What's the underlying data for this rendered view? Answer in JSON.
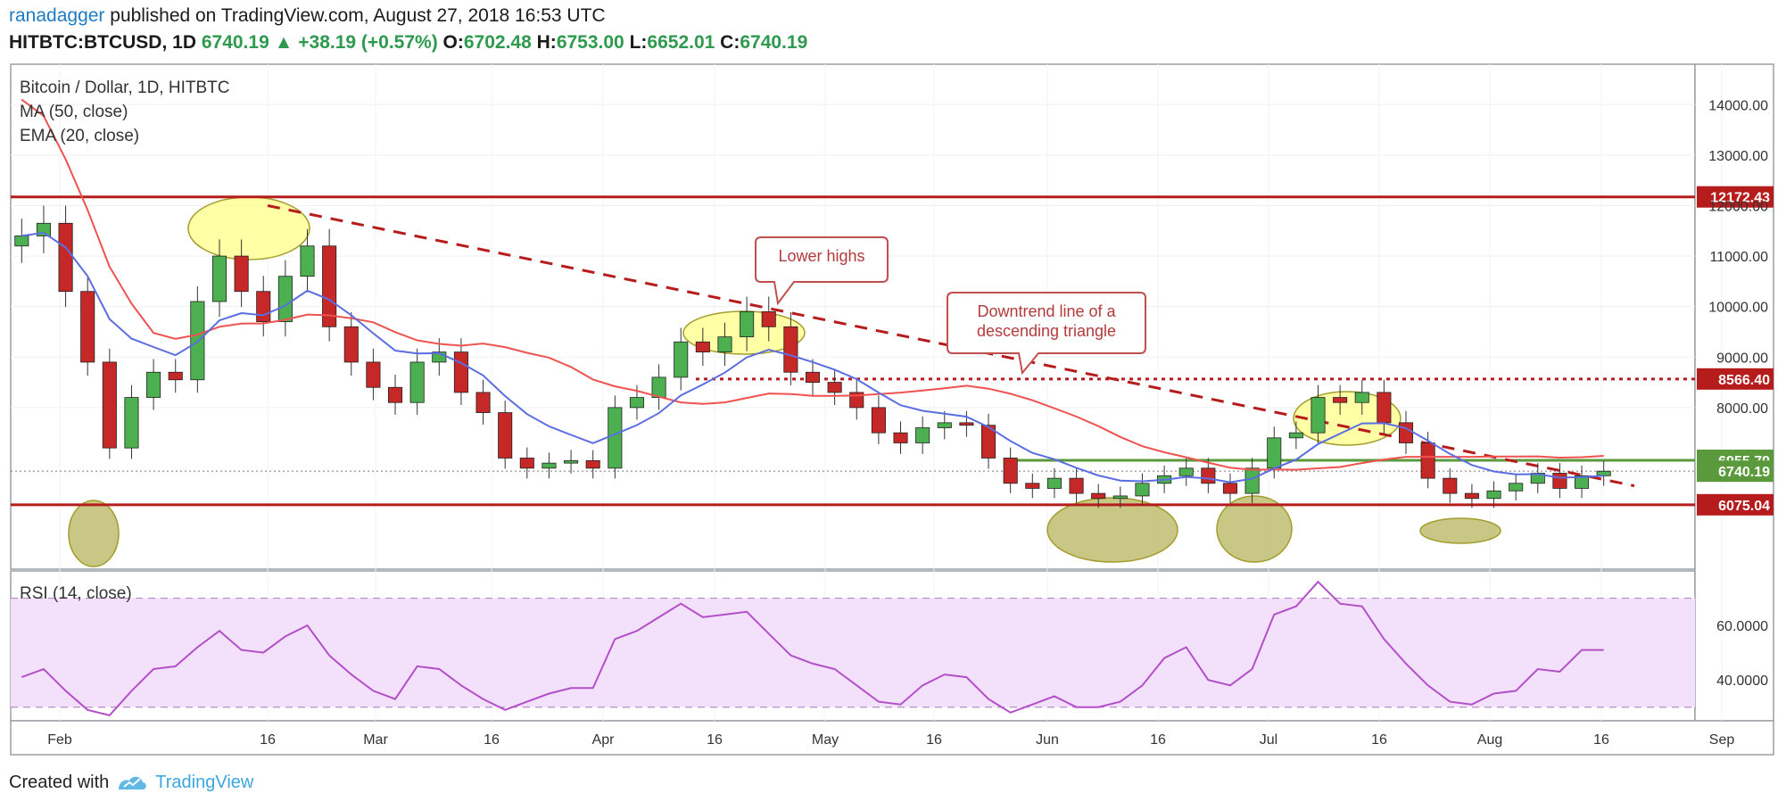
{
  "header": {
    "publisher": "ranadagger",
    "published_text": "published on TradingView.com, August 27, 2018 16:53 UTC",
    "symbol": "HITBTC:BTCUSD, 1D",
    "last": "6740.19",
    "change": "+38.19 (+0.57%)",
    "o_label": "O:",
    "o": "6702.48",
    "h_label": "H:",
    "h": "6753.00",
    "l_label": "L:",
    "l": "6652.01",
    "c_label": "C:",
    "c": "6740.19"
  },
  "legend": {
    "title": "Bitcoin / Dollar, 1D, HITBTC",
    "ma": "MA (50, close)",
    "ema": "EMA (20, close)",
    "rsi": "RSI (14, close)"
  },
  "annotations": {
    "lower_highs": "Lower highs",
    "downtrend_line1": "Downtrend line of a",
    "downtrend_line2": "descending triangle"
  },
  "footer": {
    "created_with": "Created with",
    "brand": "TradingView"
  },
  "colors": {
    "up": "#4caf50",
    "down": "#c62828",
    "ma": "#ef5350",
    "ema": "#5b6ee1",
    "rsi": "#b34fc8",
    "level": "#b71c1c",
    "green_level": "#5a9a3c",
    "highlight_yellow": "#ffff88",
    "highlight_olive": "#b5b45e"
  },
  "chart_data": {
    "type": "candlestick",
    "title": "Bitcoin / Dollar, 1D, HITBTC",
    "x_ticks": [
      "Feb",
      "16",
      "Mar",
      "16",
      "Apr",
      "16",
      "May",
      "16",
      "Jun",
      "16",
      "Jul",
      "16",
      "Aug",
      "16",
      "Sep"
    ],
    "y_ticks": [
      "14000.00",
      "13000.00",
      "12000.00",
      "11000.00",
      "10000.00",
      "9000.00",
      "8000.00"
    ],
    "ylim": [
      4800,
      14800
    ],
    "levels": [
      {
        "label": "12172.43",
        "value": 12172.43,
        "style": "solid"
      },
      {
        "label": "8566.40",
        "value": 8566.4,
        "style": "dotted"
      },
      {
        "label": "6955.79",
        "value": 6955.79,
        "style": "solid-green"
      },
      {
        "label": "6740.19",
        "value": 6740.19,
        "style": "last-price"
      },
      {
        "label": "6075.04",
        "value": 6075.04,
        "style": "solid"
      }
    ],
    "closes_every_3_days": [
      11400,
      11650,
      10300,
      8900,
      7200,
      8200,
      8700,
      8550,
      10100,
      11000,
      10300,
      9700,
      10600,
      11200,
      9600,
      8900,
      8400,
      8100,
      8900,
      9100,
      8300,
      7900,
      7000,
      6800,
      6900,
      6950,
      6800,
      8000,
      8200,
      8600,
      9300,
      9100,
      9400,
      9900,
      9600,
      8700,
      8500,
      8300,
      8000,
      7500,
      7300,
      7600,
      7700,
      7650,
      7000,
      6500,
      6400,
      6600,
      6300,
      6200,
      6250,
      6500,
      6650,
      6800,
      6500,
      6300,
      6800,
      7400,
      7500,
      8200,
      8100,
      8300,
      7700,
      7300,
      6600,
      6300,
      6200,
      6350,
      6500,
      6700,
      6400,
      6650,
      6740
    ],
    "rsi": {
      "label": "RSI (14, close)",
      "y_ticks": [
        "60.0000",
        "40.0000"
      ],
      "ylim": [
        25,
        80
      ],
      "band": [
        30,
        70
      ],
      "values_every_3_days": [
        41,
        44,
        36,
        29,
        27,
        36,
        44,
        45,
        52,
        58,
        51,
        50,
        56,
        60,
        49,
        42,
        36,
        33,
        45,
        44,
        38,
        33,
        29,
        32,
        35,
        37,
        37,
        55,
        58,
        63,
        68,
        63,
        64,
        65,
        57,
        49,
        46,
        44,
        38,
        32,
        31,
        38,
        42,
        41,
        33,
        28,
        31,
        34,
        30,
        30,
        32,
        38,
        48,
        52,
        40,
        38,
        44,
        64,
        67,
        76,
        68,
        67,
        55,
        46,
        38,
        32,
        31,
        35,
        36,
        44,
        43,
        51,
        51
      ]
    }
  }
}
